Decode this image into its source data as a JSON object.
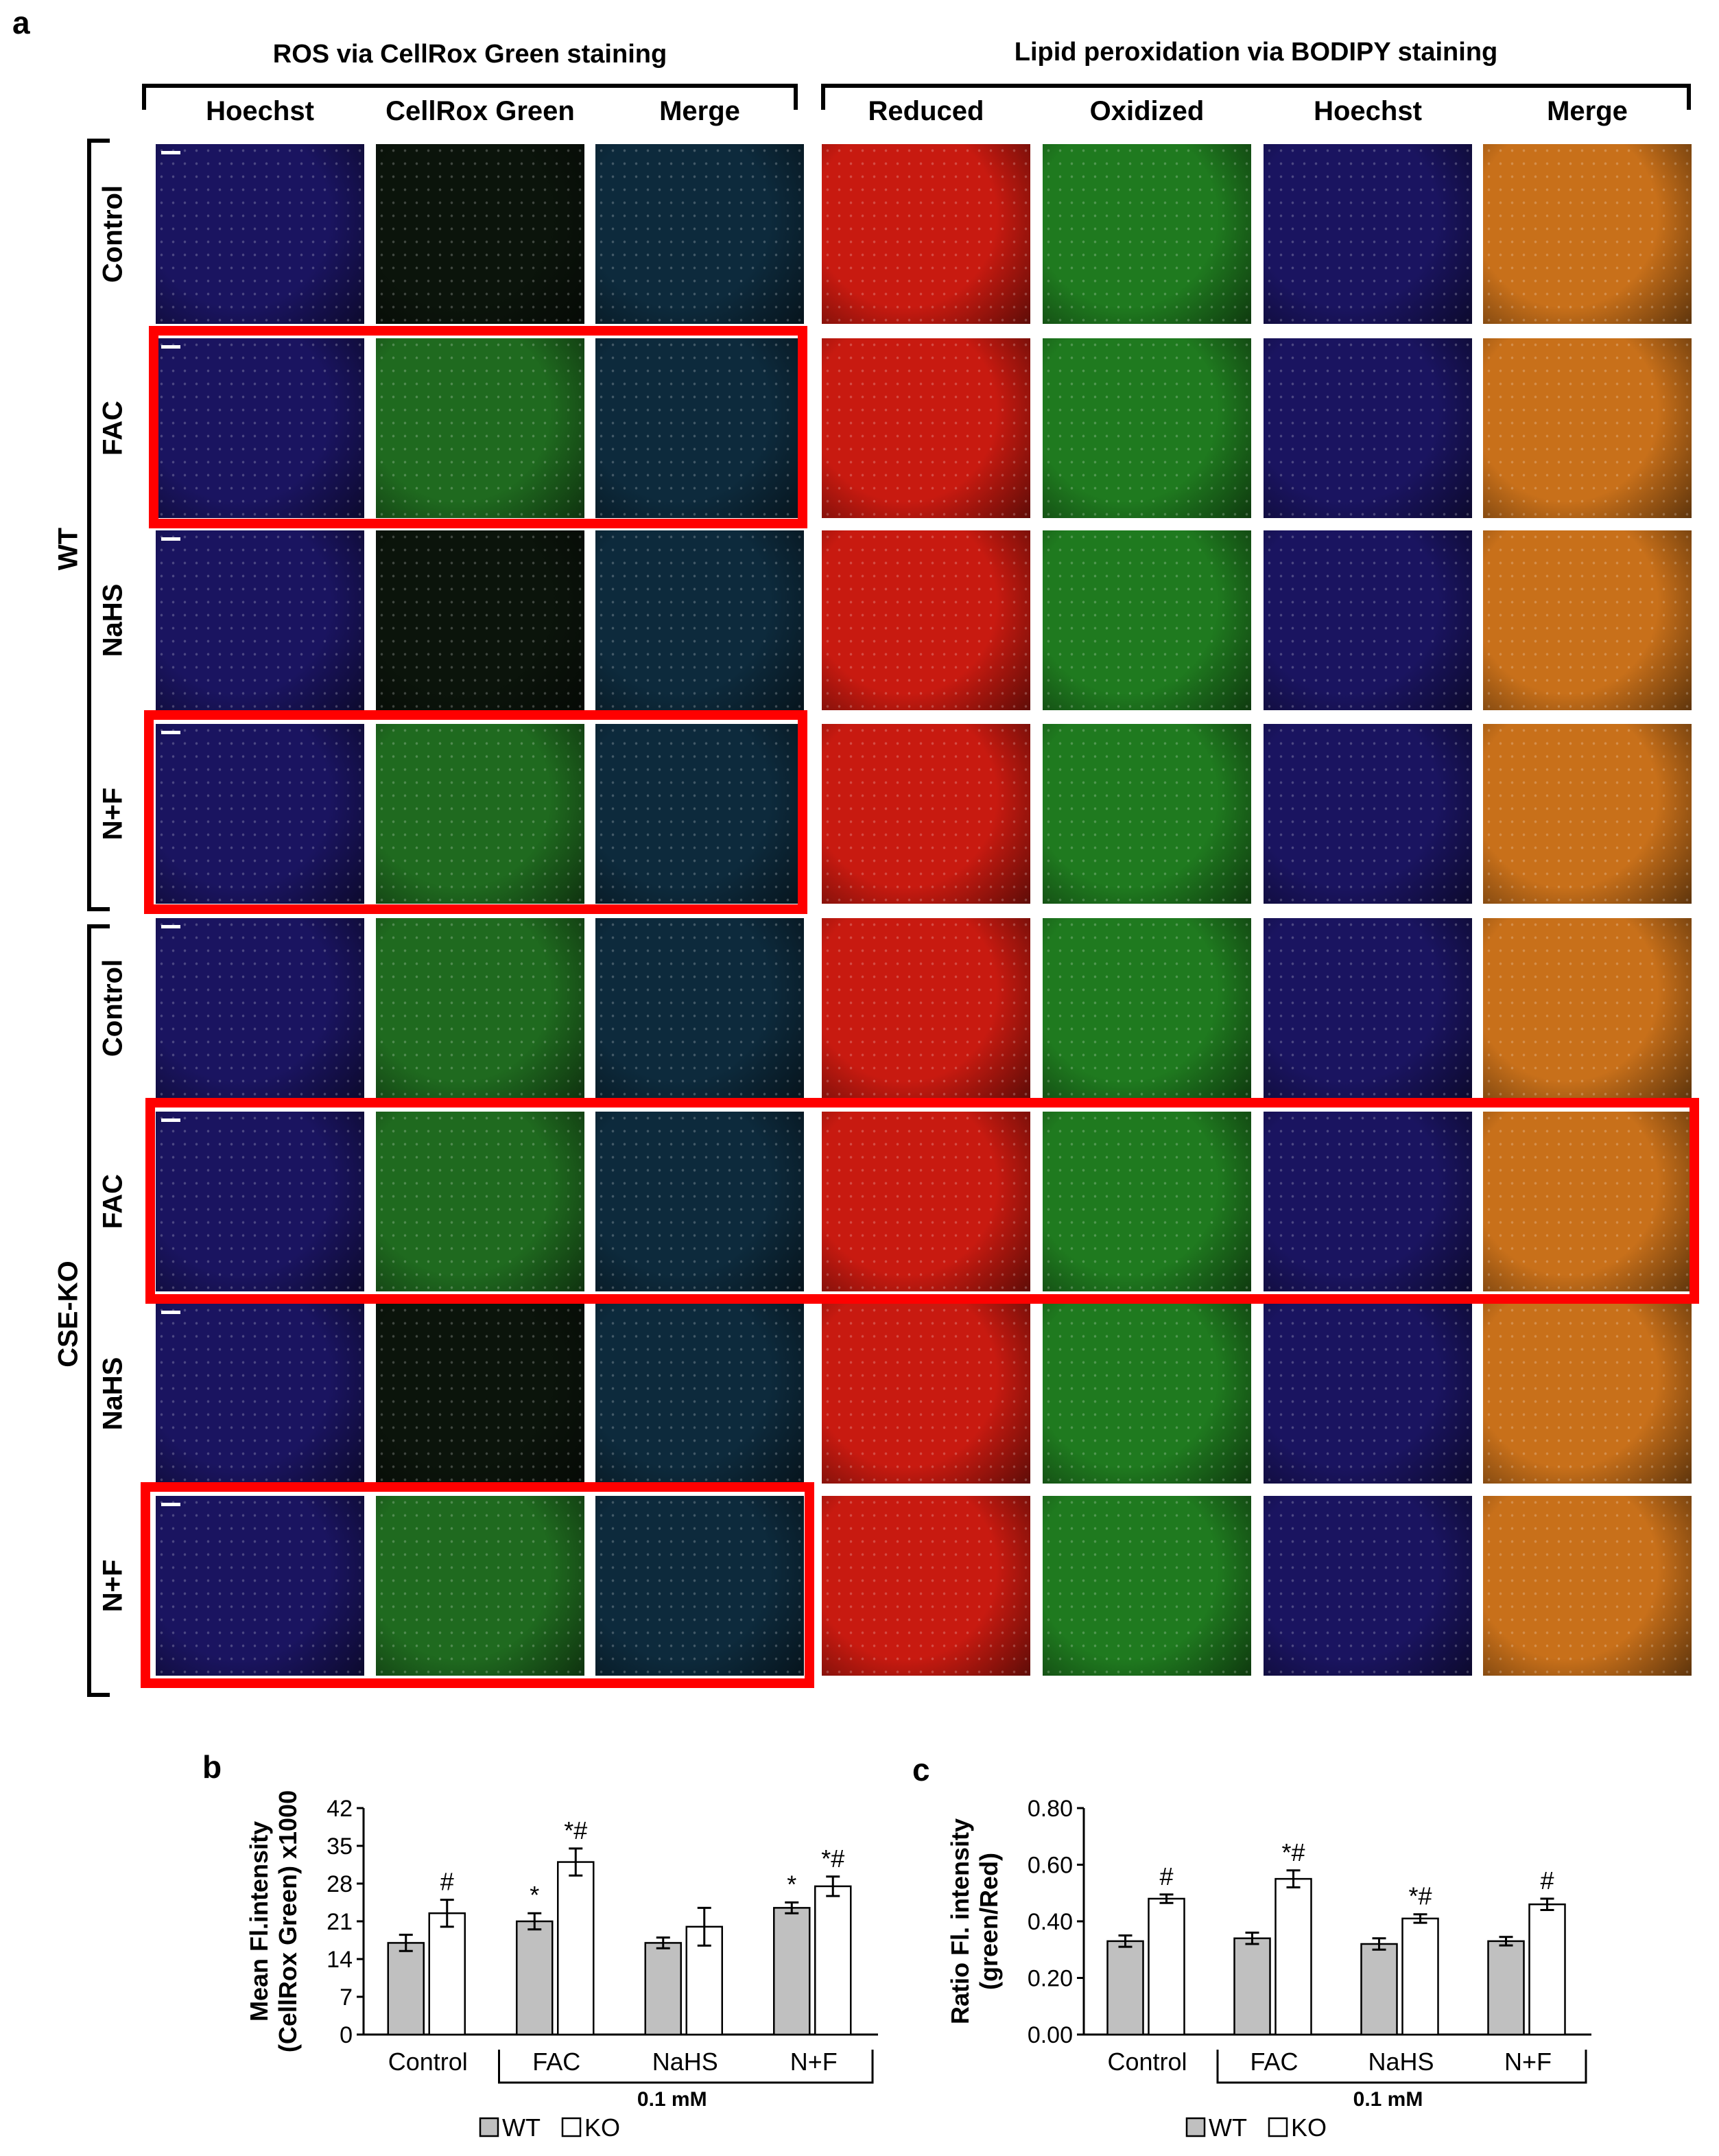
{
  "panel_a": {
    "letter": "a",
    "group_headers": {
      "ros": "ROS via CellRox Green staining",
      "lipid": "Lipid peroxidation via BODIPY staining"
    },
    "columns": [
      "Hoechst",
      "CellRox Green",
      "Merge",
      "Reduced",
      "Oxidized",
      "Hoechst",
      "Merge"
    ],
    "genotypes": [
      "WT",
      "CSE-KO"
    ],
    "rows": [
      "Control",
      "FAC",
      "NaHS",
      "N+F",
      "Control",
      "FAC",
      "NaHS",
      "N+F"
    ],
    "tile_colors": {
      "hoechst": "#1a1460",
      "cellrox_dim": "#0b140b",
      "cellrox_bright": "#1f6a1f",
      "merge_ros": "#0d2a3c",
      "reduced": "#c81a10",
      "oxidized": "#1f7a1f",
      "merge_lipid": "#c8701a",
      "highlight": "#ff0000"
    }
  },
  "chart_data": [
    {
      "panel": "b",
      "type": "bar",
      "categories": [
        "Control",
        "FAC",
        "NaHS",
        "N+F"
      ],
      "group_bracket_label": "0.1 mM",
      "ylabel": "Mean Fl.intensity (CellRox Green) x1000",
      "ylim": [
        0,
        42
      ],
      "yticks": [
        "0",
        "7",
        "14",
        "21",
        "28",
        "35",
        "42"
      ],
      "series": [
        {
          "name": "WT",
          "color": "#c0c0c0",
          "values": [
            17,
            21,
            17,
            23.5
          ],
          "errors": [
            1.5,
            1.5,
            1,
            1
          ],
          "annotations": [
            "",
            "*",
            "",
            "*"
          ]
        },
        {
          "name": "KO",
          "color": "#ffffff",
          "values": [
            22.5,
            32,
            20,
            27.5
          ],
          "errors": [
            2.5,
            2.5,
            3.5,
            1.8
          ],
          "annotations": [
            "#",
            "*#",
            "",
            "*#"
          ]
        }
      ],
      "legend": [
        "WT",
        "KO"
      ]
    },
    {
      "panel": "c",
      "type": "bar",
      "categories": [
        "Control",
        "FAC",
        "NaHS",
        "N+F"
      ],
      "group_bracket_label": "0.1 mM",
      "ylabel": "Ratio Fl. intensity (green/Red)",
      "ylim": [
        0,
        0.8
      ],
      "yticks": [
        "0.00",
        "0.20",
        "0.40",
        "0.60",
        "0.80"
      ],
      "series": [
        {
          "name": "WT",
          "color": "#c0c0c0",
          "values": [
            0.33,
            0.34,
            0.32,
            0.33
          ],
          "errors": [
            0.02,
            0.02,
            0.02,
            0.015
          ],
          "annotations": [
            "",
            "",
            "",
            ""
          ]
        },
        {
          "name": "KO",
          "color": "#ffffff",
          "values": [
            0.48,
            0.55,
            0.41,
            0.46
          ],
          "errors": [
            0.015,
            0.03,
            0.015,
            0.02
          ],
          "annotations": [
            "#",
            "*#",
            "*#",
            "#"
          ]
        }
      ],
      "legend": [
        "WT",
        "KO"
      ]
    }
  ]
}
